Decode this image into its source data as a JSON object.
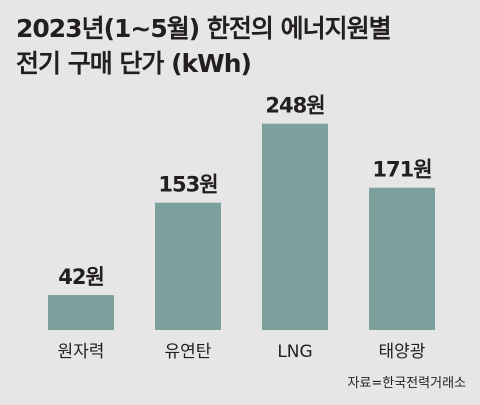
{
  "title_lines": [
    "2023년(1~5월) 한전의 에너지원별",
    "전기 구매 단가 (kWh)"
  ],
  "source": "자료=한국전력거래소",
  "colors": {
    "bar": "#7ea09d",
    "background": "#e6e6e6",
    "text": "#231f20"
  },
  "chart_data": {
    "type": "bar",
    "title": "2023년(1~5월) 한전의 에너지원별 전기 구매 단가 (kWh)",
    "categories": [
      "원자력",
      "유연탄",
      "LNG",
      "태양광"
    ],
    "values": [
      42,
      153,
      248,
      171
    ],
    "value_labels": [
      "42원",
      "153원",
      "248원",
      "171원"
    ],
    "xlabel": "",
    "ylabel": "",
    "grid": false,
    "legend": "none"
  }
}
